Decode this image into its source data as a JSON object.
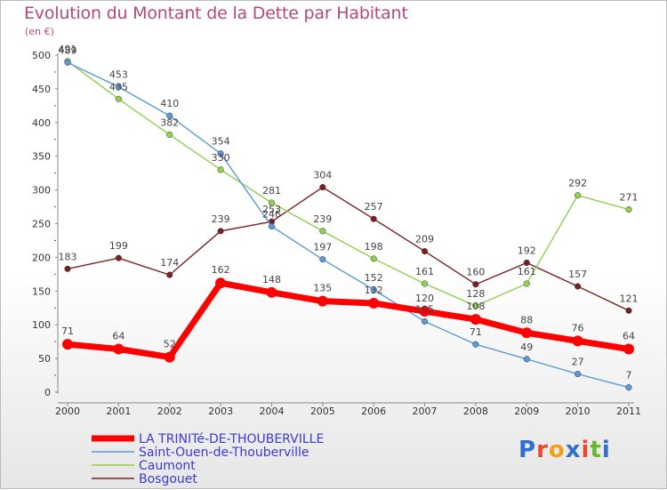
{
  "title": "Evolution du Montant de la Dette par Habitant",
  "subtitle": "(en €)",
  "logo": "Proxiti",
  "chart_data": {
    "type": "line",
    "title": "Evolution du Montant de la Dette par Habitant",
    "ylabel": "(en €)",
    "x": [
      2000,
      2001,
      2002,
      2003,
      2004,
      2005,
      2006,
      2007,
      2008,
      2009,
      2010,
      2011
    ],
    "ylim": [
      0,
      500
    ],
    "yticks": [
      0,
      50,
      100,
      150,
      200,
      250,
      300,
      350,
      400,
      450,
      500
    ],
    "grid": false,
    "legend_position": "bottom-left",
    "series": [
      {
        "name": "LA TRINITé-DE-THOUBERVILLE",
        "color": "#ff0000",
        "values": [
          71,
          64,
          52,
          162,
          148,
          135,
          132,
          120,
          108,
          88,
          76,
          64
        ]
      },
      {
        "name": "Saint-Ouen-de-Thouberville",
        "color": "#5b9bd5",
        "values": [
          489,
          453,
          410,
          354,
          246,
          197,
          152,
          105,
          71,
          49,
          27,
          7
        ]
      },
      {
        "name": "Caumont",
        "color": "#8fd14f",
        "values": [
          491,
          435,
          382,
          330,
          281,
          239,
          198,
          161,
          128,
          161,
          292,
          271
        ]
      },
      {
        "name": "Bosgouet",
        "color": "#7a2020",
        "values": [
          183,
          199,
          174,
          239,
          253,
          304,
          257,
          209,
          160,
          192,
          157,
          121
        ]
      }
    ]
  }
}
